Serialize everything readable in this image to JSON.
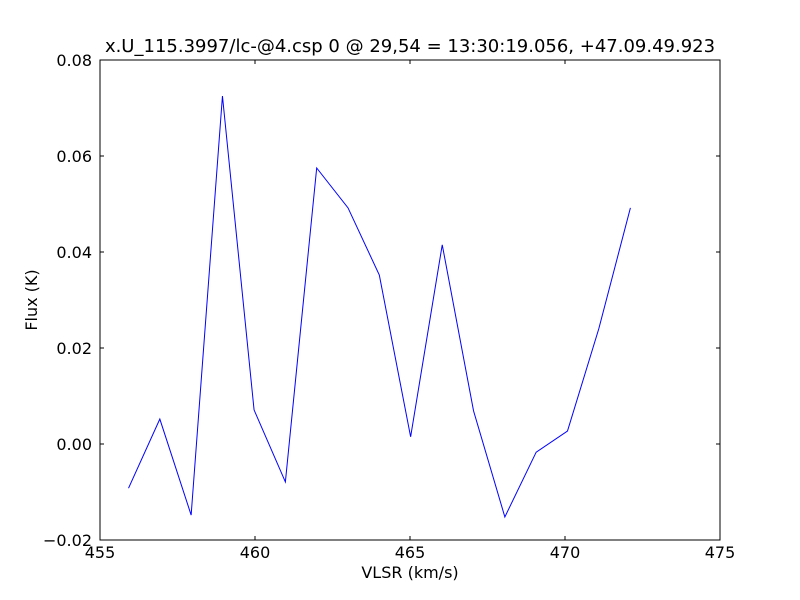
{
  "chart_data": {
    "type": "line",
    "title": "x.U_115.3997/lc-@4.csp 0 @ 29,54 = 13:30:19.056, +47.09.49.923",
    "x_label": "VLSR (km/s)",
    "y_label": "Flux (K)",
    "x": [
      455.92,
      456.93,
      457.94,
      458.95,
      459.97,
      460.98,
      461.99,
      463.0,
      464.01,
      465.02,
      466.04,
      467.05,
      468.06,
      469.07,
      470.08,
      471.09,
      472.11
    ],
    "series": [
      {
        "color": "#0000ff",
        "values": [
          -0.0092,
          0.0052,
          -0.0148,
          0.0725,
          0.0071,
          -0.0079,
          0.0575,
          0.0492,
          0.0352,
          0.0015,
          0.0415,
          0.0069,
          -0.0152,
          -0.0017,
          0.0027,
          0.024,
          0.0492
        ]
      }
    ],
    "xlim": [
      455,
      475
    ],
    "xticks": [
      455,
      460,
      465,
      470,
      475
    ],
    "ylim": [
      -0.02,
      0.08
    ],
    "yticks": [
      {
        "value": -0.02,
        "label": "−0.02"
      },
      {
        "value": 0,
        "label": "0.00"
      },
      {
        "value": 0.02,
        "label": "0.02"
      },
      {
        "value": 0.04,
        "label": "0.04"
      },
      {
        "value": 0.06,
        "label": "0.06"
      },
      {
        "value": 0.08,
        "label": "0.08"
      }
    ],
    "grid": false
  }
}
